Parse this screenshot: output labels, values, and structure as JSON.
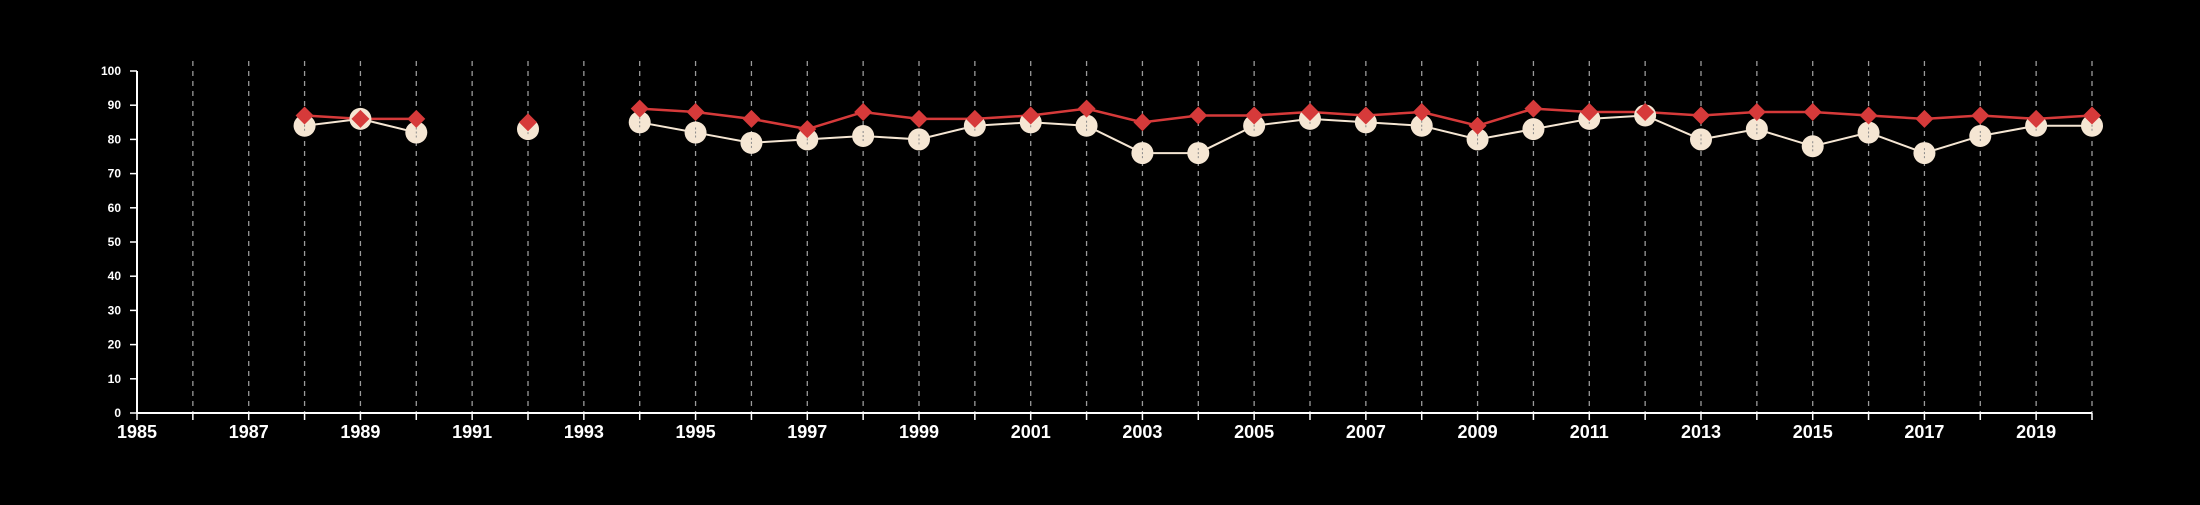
{
  "chart_data": {
    "type": "line",
    "title": "",
    "xlabel": "",
    "ylabel": "",
    "xlim": [
      1985,
      2020
    ],
    "ylim": [
      0,
      100
    ],
    "y_ticks": [
      "0",
      "10",
      "20",
      "30",
      "40",
      "50",
      "60",
      "70",
      "80",
      "90",
      "100"
    ],
    "x_tick_labels": [
      "1985",
      "1987",
      "1989",
      "1991",
      "1993",
      "1995",
      "1997",
      "1999",
      "2001",
      "2003",
      "2005",
      "2007",
      "2009",
      "2011",
      "2013",
      "2015",
      "2017",
      "2019"
    ],
    "x_tick_values": [
      1985,
      1987,
      1989,
      1991,
      1993,
      1995,
      1997,
      1999,
      2001,
      2003,
      2005,
      2007,
      2009,
      2011,
      2013,
      2015,
      2017,
      2019
    ],
    "grid": "vertical dashed at every year",
    "legend": "none",
    "colors": {
      "background": "#000000",
      "axis": "#ffffff",
      "grid": "#9a9a9a",
      "series_circle": "#f5e6d3",
      "series_diamond": "#d63a3a"
    },
    "series": [
      {
        "marker": "circle",
        "segments": [
          [
            [
              1988,
              84
            ],
            [
              1989,
              86
            ],
            [
              1990,
              82
            ]
          ],
          [
            [
              1992,
              83
            ]
          ],
          [
            [
              1994,
              85
            ],
            [
              1995,
              82
            ],
            [
              1996,
              79
            ],
            [
              1997,
              80
            ],
            [
              1998,
              81
            ],
            [
              1999,
              80
            ],
            [
              2000,
              84
            ],
            [
              2001,
              85
            ],
            [
              2002,
              84
            ],
            [
              2003,
              76
            ],
            [
              2004,
              76
            ],
            [
              2005,
              84
            ],
            [
              2006,
              86
            ],
            [
              2007,
              85
            ],
            [
              2008,
              84
            ],
            [
              2009,
              80
            ],
            [
              2010,
              83
            ],
            [
              2011,
              86
            ],
            [
              2012,
              87
            ],
            [
              2013,
              80
            ],
            [
              2014,
              83
            ],
            [
              2015,
              78
            ],
            [
              2016,
              82
            ],
            [
              2017,
              76
            ],
            [
              2018,
              81
            ],
            [
              2019,
              84
            ],
            [
              2020,
              84
            ]
          ]
        ]
      },
      {
        "marker": "diamond",
        "segments": [
          [
            [
              1988,
              87
            ],
            [
              1989,
              86
            ],
            [
              1990,
              86
            ]
          ],
          [
            [
              1992,
              85
            ]
          ],
          [
            [
              1994,
              89
            ],
            [
              1995,
              88
            ],
            [
              1996,
              86
            ],
            [
              1997,
              83
            ],
            [
              1998,
              88
            ],
            [
              1999,
              86
            ],
            [
              2000,
              86
            ],
            [
              2001,
              87
            ],
            [
              2002,
              89
            ],
            [
              2003,
              85
            ],
            [
              2004,
              87
            ],
            [
              2005,
              87
            ],
            [
              2006,
              88
            ],
            [
              2007,
              87
            ],
            [
              2008,
              88
            ],
            [
              2009,
              84
            ],
            [
              2010,
              89
            ],
            [
              2011,
              88
            ],
            [
              2012,
              88
            ],
            [
              2013,
              87
            ],
            [
              2014,
              88
            ],
            [
              2015,
              88
            ],
            [
              2016,
              87
            ],
            [
              2017,
              86
            ],
            [
              2018,
              87
            ],
            [
              2019,
              86
            ],
            [
              2020,
              87
            ]
          ]
        ]
      }
    ]
  }
}
